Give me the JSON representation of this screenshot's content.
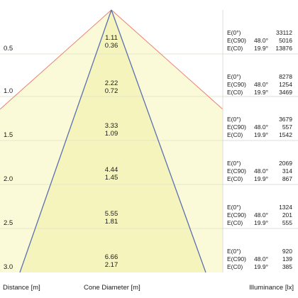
{
  "colors": {
    "zone_light": "#fafad8",
    "zone_dark": "#f4f4bc",
    "divider": "#e6e6cc",
    "beam_red": "#ef7d70",
    "cone_blue": "#5d6fae",
    "panel_border": "#dcdcdc"
  },
  "rows": [
    {
      "distance": "0.5",
      "diameter_c90": "1.11",
      "diameter_c0": "0.36",
      "e0_label": "E(0°)",
      "ec90_label": "E(C90)",
      "ec0_label": "E(C0)",
      "c90_angle": "48.0°",
      "c0_angle": "19.9°",
      "e0": "33112",
      "ec90": "5016",
      "ec0": "13876"
    },
    {
      "distance": "1.0",
      "diameter_c90": "2.22",
      "diameter_c0": "0.72",
      "e0_label": "E(0°)",
      "ec90_label": "E(C90)",
      "ec0_label": "E(C0)",
      "c90_angle": "48.0°",
      "c0_angle": "19.9°",
      "e0": "8278",
      "ec90": "1254",
      "ec0": "3469"
    },
    {
      "distance": "1.5",
      "diameter_c90": "3.33",
      "diameter_c0": "1.09",
      "e0_label": "E(0°)",
      "ec90_label": "E(C90)",
      "ec0_label": "E(C0)",
      "c90_angle": "48.0°",
      "c0_angle": "19.9°",
      "e0": "3679",
      "ec90": "557",
      "ec0": "1542"
    },
    {
      "distance": "2.0",
      "diameter_c90": "4.44",
      "diameter_c0": "1.45",
      "e0_label": "E(0°)",
      "ec90_label": "E(C90)",
      "ec0_label": "E(C0)",
      "c90_angle": "48.0°",
      "c0_angle": "19.9°",
      "e0": "2069",
      "ec90": "314",
      "ec0": "867"
    },
    {
      "distance": "2.5",
      "diameter_c90": "5.55",
      "diameter_c0": "1.81",
      "e0_label": "E(0°)",
      "ec90_label": "E(C90)",
      "ec0_label": "E(C0)",
      "c90_angle": "48.0°",
      "c0_angle": "19.9°",
      "e0": "1324",
      "ec90": "201",
      "ec0": "555"
    },
    {
      "distance": "3.0",
      "diameter_c90": "6.66",
      "diameter_c0": "2.17",
      "e0_label": "E(0°)",
      "ec90_label": "E(C90)",
      "ec0_label": "E(C0)",
      "c90_angle": "48.0°",
      "c0_angle": "19.9°",
      "e0": "920",
      "ec90": "139",
      "ec0": "385"
    }
  ],
  "footer": {
    "distance_label": "Distance [m]",
    "cone_label": "Cone Diameter [m]",
    "illuminance_label": "Illuminance [lx]"
  }
}
